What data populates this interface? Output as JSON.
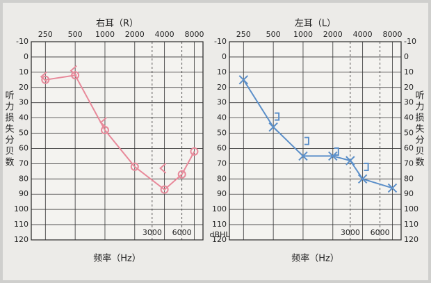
{
  "chart_data": [
    {
      "type": "line",
      "title": "右耳（R）",
      "x_label": "频率（Hz）",
      "y_label": "听力损失分贝数",
      "log_x": true,
      "xlim": [
        180,
        9800
      ],
      "xticks": [
        250,
        500,
        1000,
        2000,
        4000,
        8000
      ],
      "xticks_bottom": [
        3000,
        6000
      ],
      "ylim": [
        -10,
        120
      ],
      "yticks": [
        -10,
        0,
        10,
        20,
        30,
        40,
        50,
        60,
        70,
        80,
        90,
        100,
        110,
        120
      ],
      "grid": true,
      "y_labels_sides": [
        "left"
      ],
      "series": [
        {
          "color": "#e8899a",
          "marker": "circle",
          "line": true,
          "x": [
            250,
            500,
            1000,
            2000,
            4000,
            6000,
            8000
          ],
          "values": [
            15,
            12,
            48,
            72,
            87,
            77,
            62
          ]
        },
        {
          "color": "#e8899a",
          "marker": "<",
          "line": false,
          "x": [
            250,
            500,
            1000,
            4000
          ],
          "values": [
            13,
            9,
            43,
            73
          ]
        }
      ]
    },
    {
      "type": "line",
      "title": "左耳（L）",
      "x_label": "频率（Hz）",
      "y_label": "听力损失分贝数",
      "log_x": true,
      "xlim": [
        180,
        9800
      ],
      "xticks": [
        250,
        500,
        1000,
        2000,
        4000,
        8000
      ],
      "xticks_bottom": [
        3000,
        6000
      ],
      "ylim": [
        -10,
        120
      ],
      "yticks": [
        -10,
        0,
        10,
        20,
        30,
        40,
        50,
        60,
        70,
        80,
        90,
        100,
        110,
        120
      ],
      "grid": true,
      "y_labels_sides": [
        "left",
        "right"
      ],
      "series": [
        {
          "color": "#5b8fc9",
          "marker": "x",
          "line": true,
          "x": [
            250,
            500,
            1000,
            2000,
            3000,
            4000,
            8000
          ],
          "values": [
            15,
            46,
            65,
            65,
            68,
            80,
            86
          ]
        },
        {
          "color": "#5b8fc9",
          "marker": "]",
          "line": false,
          "x": [
            500,
            1000,
            2000,
            4000
          ],
          "values": [
            40,
            56,
            63,
            73
          ]
        }
      ]
    }
  ],
  "unit_label": "dBHL"
}
